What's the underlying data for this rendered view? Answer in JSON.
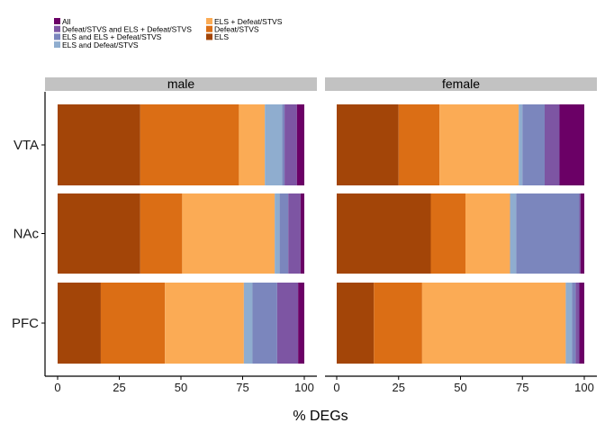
{
  "chart_data": {
    "type": "bar",
    "orientation": "horizontal",
    "stacked": true,
    "xlabel": "% DEGs",
    "xlim": [
      0,
      100
    ],
    "xticks": [
      0,
      25,
      50,
      75,
      100
    ],
    "facets": [
      "male",
      "female"
    ],
    "categories": [
      "VTA",
      "NAc",
      "PFC"
    ],
    "legend_position": "top-left",
    "series_order_left_to_right": [
      "ELS",
      "Defeat/STVS",
      "ELS + Defeat/STVS",
      "ELS and Defeat/STVS",
      "ELS and ELS + Defeat/STVS",
      "Defeat/STVS and ELS + Defeat/STVS",
      "All"
    ],
    "legend": [
      {
        "name": "All",
        "color": "#6b0066"
      },
      {
        "name": "Defeat/STVS and ELS + Defeat/STVS",
        "color": "#7d55a3"
      },
      {
        "name": "ELS and ELS + Defeat/STVS",
        "color": "#7b86bd"
      },
      {
        "name": "ELS and Defeat/STVS",
        "color": "#8fadcf"
      },
      {
        "name": "ELS + Defeat/STVS",
        "color": "#fbab55"
      },
      {
        "name": "Defeat/STVS",
        "color": "#db6e15"
      },
      {
        "name": "ELS",
        "color": "#a34508"
      }
    ],
    "series": [
      {
        "name": "ELS",
        "male": [
          33.5,
          33.5,
          17.5
        ],
        "female": [
          25,
          38,
          15
        ]
      },
      {
        "name": "Defeat/STVS",
        "male": [
          40,
          17,
          26
        ],
        "female": [
          16.5,
          14,
          19.5
        ]
      },
      {
        "name": "ELS + Defeat/STVS",
        "male": [
          10.5,
          37.5,
          32
        ],
        "female": [
          32,
          18,
          58
        ]
      },
      {
        "name": "ELS and Defeat/STVS",
        "male": [
          7,
          2,
          3.5
        ],
        "female": [
          1.5,
          2.5,
          2.5
        ]
      },
      {
        "name": "ELS and ELS + Defeat/STVS",
        "male": [
          1,
          3.5,
          10
        ],
        "female": [
          9,
          25.5,
          1.5
        ]
      },
      {
        "name": "Defeat/STVS and ELS + Defeat/STVS",
        "male": [
          5,
          5,
          8.5
        ],
        "female": [
          6,
          0.5,
          1.5
        ]
      },
      {
        "name": "All",
        "male": [
          3,
          1.5,
          2.5
        ],
        "female": [
          10,
          1.5,
          2
        ]
      }
    ]
  }
}
